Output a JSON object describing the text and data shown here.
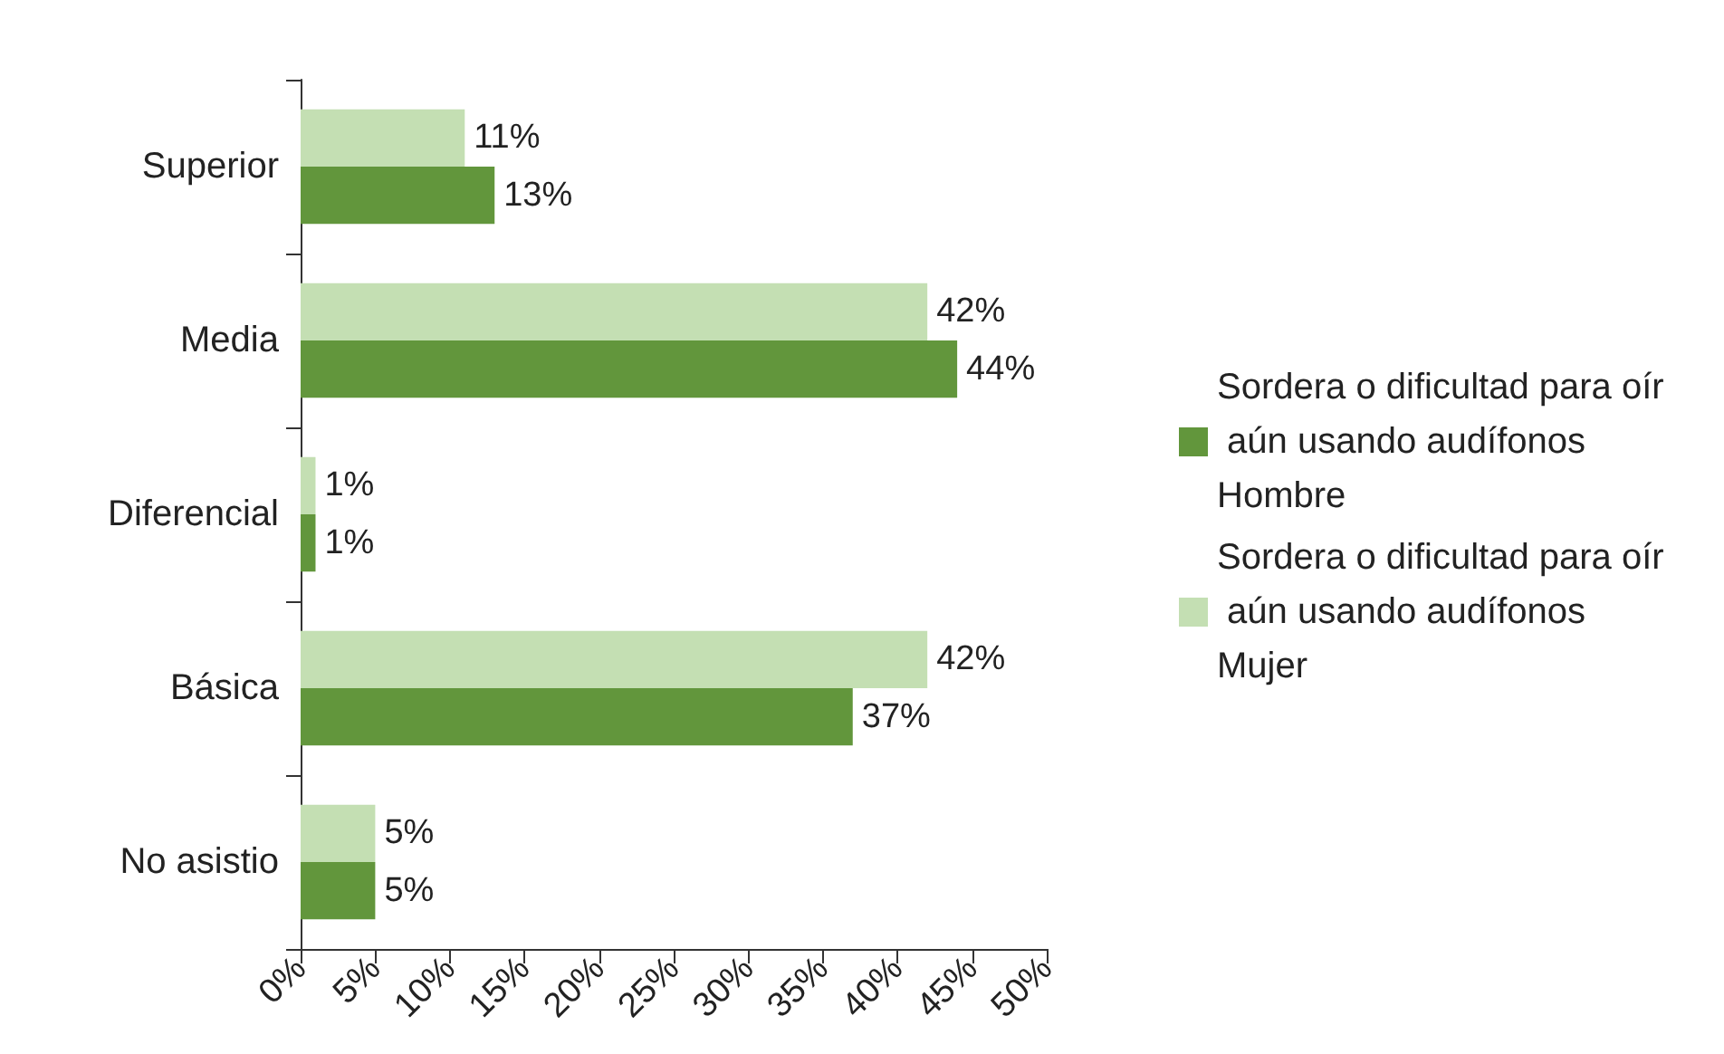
{
  "chart_data": {
    "type": "bar",
    "orientation": "horizontal",
    "categories": [
      "Superior",
      "Media",
      "Diferencial",
      "Básica",
      "No asistio"
    ],
    "series": [
      {
        "name": "Sordera o dificultad para oír aún usando audífonos Hombre",
        "color": "#62963c",
        "values": [
          13,
          44,
          1,
          37,
          5
        ],
        "value_labels": [
          "13%",
          "44%",
          "1%",
          "37%",
          "5%"
        ]
      },
      {
        "name": "Sordera o dificultad para oír aún usando audífonos Mujer",
        "color": "#c4dfb3",
        "values": [
          11,
          42,
          1,
          42,
          5
        ],
        "value_labels": [
          "11%",
          "42%",
          "1%",
          "42%",
          "5%"
        ]
      }
    ],
    "xlim": [
      0,
      50
    ],
    "xticks": [
      {
        "value": 0,
        "label": "0%"
      },
      {
        "value": 5,
        "label": "5%"
      },
      {
        "value": 10,
        "label": "10%"
      },
      {
        "value": 15,
        "label": "15%"
      },
      {
        "value": 20,
        "label": "20%"
      },
      {
        "value": 25,
        "label": "25%"
      },
      {
        "value": 30,
        "label": "30%"
      },
      {
        "value": 35,
        "label": "35%"
      },
      {
        "value": 40,
        "label": "40%"
      },
      {
        "value": 45,
        "label": "45%"
      },
      {
        "value": 50,
        "label": "50%"
      }
    ],
    "legend": "right",
    "grid": false
  }
}
